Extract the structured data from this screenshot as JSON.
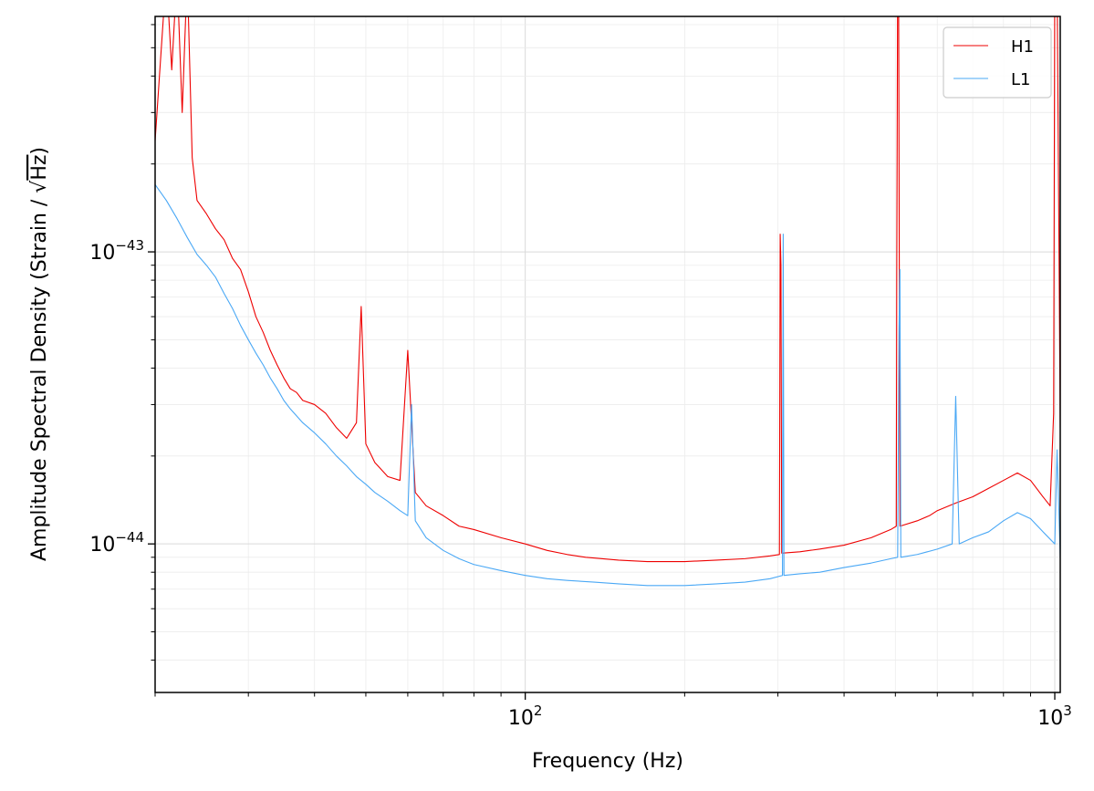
{
  "chart_data": {
    "type": "line",
    "title": "",
    "xlabel": "Frequency (Hz)",
    "ylabel_prefix": "Amplitude Spectral Density (Strain / ",
    "ylabel_root": "√",
    "ylabel_radicand": "Hz",
    "ylabel_suffix": ")",
    "xscale": "log",
    "yscale": "log",
    "xlim": [
      20,
      1024
    ],
    "ylim": [
      3.1e-45,
      6.4e-43
    ],
    "grid": true,
    "legend_position": "upper right",
    "x_ticks": [
      {
        "value": 100,
        "base": "10",
        "exp": "2"
      },
      {
        "value": 1000,
        "base": "10",
        "exp": "3"
      }
    ],
    "y_ticks": [
      {
        "value": 1e-44,
        "base": "10",
        "exp": "−44"
      },
      {
        "value": 1e-43,
        "base": "10",
        "exp": "−43"
      }
    ],
    "series": [
      {
        "name": "H1",
        "color": "#ee0000",
        "points": [
          [
            20,
            2.4e-43
          ],
          [
            21,
            9e-43
          ],
          [
            21.5,
            4.2e-43
          ],
          [
            22,
            9e-43
          ],
          [
            22.5,
            3e-43
          ],
          [
            23,
            9e-43
          ],
          [
            23.5,
            2.1e-43
          ],
          [
            24,
            1.5e-43
          ],
          [
            25,
            1.35e-43
          ],
          [
            26,
            1.2e-43
          ],
          [
            27,
            1.1e-43
          ],
          [
            28,
            9.5e-44
          ],
          [
            29,
            8.7e-44
          ],
          [
            30,
            7.3e-44
          ],
          [
            31,
            6e-44
          ],
          [
            32,
            5.3e-44
          ],
          [
            33,
            4.6e-44
          ],
          [
            34,
            4.1e-44
          ],
          [
            35,
            3.7e-44
          ],
          [
            36,
            3.4e-44
          ],
          [
            37,
            3.3e-44
          ],
          [
            38,
            3.1e-44
          ],
          [
            40,
            3e-44
          ],
          [
            42,
            2.8e-44
          ],
          [
            44,
            2.5e-44
          ],
          [
            46,
            2.3e-44
          ],
          [
            48,
            2.6e-44
          ],
          [
            49,
            6.5e-44
          ],
          [
            50,
            2.2e-44
          ],
          [
            52,
            1.9e-44
          ],
          [
            55,
            1.7e-44
          ],
          [
            58,
            1.65e-44
          ],
          [
            60,
            4.6e-44
          ],
          [
            61,
            2.6e-44
          ],
          [
            62,
            1.5e-44
          ],
          [
            65,
            1.35e-44
          ],
          [
            70,
            1.25e-44
          ],
          [
            75,
            1.15e-44
          ],
          [
            80,
            1.12e-44
          ],
          [
            90,
            1.05e-44
          ],
          [
            100,
            1e-44
          ],
          [
            110,
            9.5e-45
          ],
          [
            120,
            9.2e-45
          ],
          [
            130,
            9e-45
          ],
          [
            150,
            8.8e-45
          ],
          [
            170,
            8.7e-45
          ],
          [
            200,
            8.7e-45
          ],
          [
            230,
            8.8e-45
          ],
          [
            260,
            8.9e-45
          ],
          [
            290,
            9.1e-45
          ],
          [
            302,
            9.2e-45
          ],
          [
            303,
            1.15e-43
          ],
          [
            304,
            9e-44
          ],
          [
            305,
            9.3e-45
          ],
          [
            330,
            9.4e-45
          ],
          [
            360,
            9.6e-45
          ],
          [
            400,
            9.9e-45
          ],
          [
            450,
            1.05e-44
          ],
          [
            490,
            1.12e-44
          ],
          [
            502,
            1.15e-44
          ],
          [
            503,
            8e-44
          ],
          [
            505,
            9e-43
          ],
          [
            507,
            9e-43
          ],
          [
            510,
            1.15e-44
          ],
          [
            550,
            1.2e-44
          ],
          [
            580,
            1.25e-44
          ],
          [
            600,
            1.3e-44
          ],
          [
            650,
            1.38e-44
          ],
          [
            700,
            1.45e-44
          ],
          [
            750,
            1.55e-44
          ],
          [
            800,
            1.65e-44
          ],
          [
            850,
            1.75e-44
          ],
          [
            900,
            1.65e-44
          ],
          [
            950,
            1.45e-44
          ],
          [
            980,
            1.35e-44
          ],
          [
            995,
            2.8e-44
          ],
          [
            1000,
            9e-43
          ],
          [
            1010,
            9e-43
          ],
          [
            1024,
            2.5e-44
          ]
        ]
      },
      {
        "name": "L1",
        "color": "#4aa8f5",
        "points": [
          [
            20,
            1.7e-43
          ],
          [
            21,
            1.5e-43
          ],
          [
            22,
            1.3e-43
          ],
          [
            23,
            1.12e-43
          ],
          [
            24,
            9.8e-44
          ],
          [
            25,
            9e-44
          ],
          [
            26,
            8.2e-44
          ],
          [
            27,
            7.2e-44
          ],
          [
            28,
            6.4e-44
          ],
          [
            29,
            5.6e-44
          ],
          [
            30,
            5e-44
          ],
          [
            31,
            4.5e-44
          ],
          [
            32,
            4.1e-44
          ],
          [
            33,
            3.7e-44
          ],
          [
            34,
            3.4e-44
          ],
          [
            35,
            3.1e-44
          ],
          [
            36,
            2.9e-44
          ],
          [
            38,
            2.6e-44
          ],
          [
            40,
            2.4e-44
          ],
          [
            42,
            2.2e-44
          ],
          [
            44,
            2e-44
          ],
          [
            46,
            1.85e-44
          ],
          [
            48,
            1.7e-44
          ],
          [
            50,
            1.6e-44
          ],
          [
            52,
            1.5e-44
          ],
          [
            55,
            1.4e-44
          ],
          [
            58,
            1.3e-44
          ],
          [
            60,
            1.25e-44
          ],
          [
            61,
            3e-44
          ],
          [
            62,
            1.2e-44
          ],
          [
            65,
            1.05e-44
          ],
          [
            70,
            9.5e-45
          ],
          [
            75,
            8.9e-45
          ],
          [
            80,
            8.5e-45
          ],
          [
            90,
            8.1e-45
          ],
          [
            100,
            7.8e-45
          ],
          [
            110,
            7.6e-45
          ],
          [
            120,
            7.5e-45
          ],
          [
            135,
            7.4e-45
          ],
          [
            150,
            7.3e-45
          ],
          [
            170,
            7.2e-45
          ],
          [
            200,
            7.2e-45
          ],
          [
            230,
            7.3e-45
          ],
          [
            260,
            7.4e-45
          ],
          [
            290,
            7.6e-45
          ],
          [
            306,
            7.8e-45
          ],
          [
            307,
            1.15e-43
          ],
          [
            308,
            7.8e-45
          ],
          [
            330,
            7.9e-45
          ],
          [
            360,
            8e-45
          ],
          [
            400,
            8.3e-45
          ],
          [
            450,
            8.6e-45
          ],
          [
            490,
            8.9e-45
          ],
          [
            505,
            9e-45
          ],
          [
            508,
            5.5e-44
          ],
          [
            510,
            8.7e-44
          ],
          [
            512,
            9e-45
          ],
          [
            550,
            9.2e-45
          ],
          [
            600,
            9.6e-45
          ],
          [
            640,
            1e-44
          ],
          [
            650,
            3.2e-44
          ],
          [
            660,
            1e-44
          ],
          [
            700,
            1.05e-44
          ],
          [
            750,
            1.1e-44
          ],
          [
            800,
            1.2e-44
          ],
          [
            850,
            1.28e-44
          ],
          [
            900,
            1.22e-44
          ],
          [
            950,
            1.1e-44
          ],
          [
            1000,
            1e-44
          ],
          [
            1010,
            2.1e-44
          ],
          [
            1024,
            9e-45
          ]
        ]
      }
    ]
  }
}
